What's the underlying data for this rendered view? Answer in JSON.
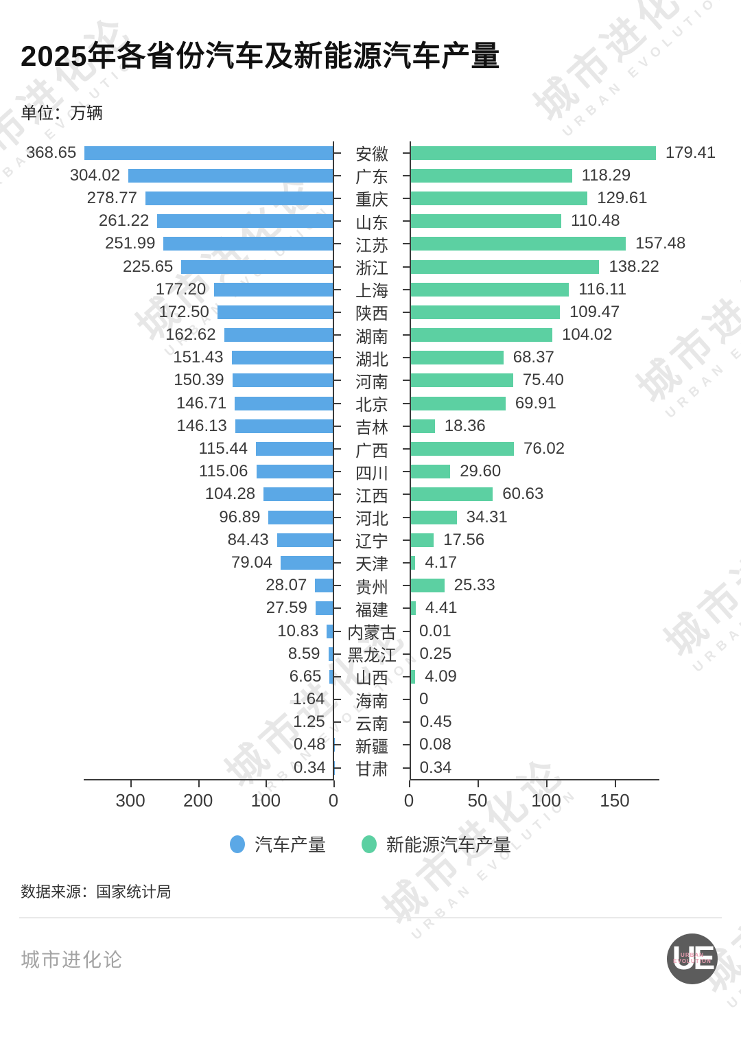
{
  "header": {
    "title": "2025年各省份汽车及新能源汽车产量",
    "unit_label": "单位：万辆"
  },
  "chart_data": {
    "type": "bar",
    "orientation": "horizontal-bidirectional",
    "title": "2025年各省份汽车及新能源汽车产量",
    "unit": "万辆",
    "categories": [
      "安徽",
      "广东",
      "重庆",
      "山东",
      "江苏",
      "浙江",
      "上海",
      "陕西",
      "湖南",
      "湖北",
      "河南",
      "北京",
      "吉林",
      "广西",
      "四川",
      "江西",
      "河北",
      "辽宁",
      "天津",
      "贵州",
      "福建",
      "内蒙古",
      "黑龙江",
      "山西",
      "海南",
      "云南",
      "新疆",
      "甘肃"
    ],
    "series": [
      {
        "name": "汽车产量",
        "side": "left",
        "color": "#5BA8E6",
        "axis_ticks": [
          300,
          200,
          100,
          0
        ],
        "axis_max": 370,
        "values": [
          368.65,
          304.02,
          278.77,
          261.22,
          251.99,
          225.65,
          177.2,
          172.5,
          162.62,
          151.43,
          150.39,
          146.71,
          146.13,
          115.44,
          115.06,
          104.28,
          96.89,
          84.43,
          79.04,
          28.07,
          27.59,
          10.83,
          8.59,
          6.65,
          1.64,
          1.25,
          0.48,
          0.34
        ],
        "labels": [
          "368.65",
          "304.02",
          "278.77",
          "261.22",
          "251.99",
          "225.65",
          "177.20",
          "172.50",
          "162.62",
          "151.43",
          "150.39",
          "146.71",
          "146.13",
          "115.44",
          "115.06",
          "104.28",
          "96.89",
          "84.43",
          "79.04",
          "28.07",
          "27.59",
          "10.83",
          "8.59",
          "6.65",
          "1.64",
          "1.25",
          "0.48",
          "0.34"
        ]
      },
      {
        "name": "新能源汽车产量",
        "side": "right",
        "color": "#5CD0A2",
        "axis_ticks": [
          0,
          50,
          100,
          150
        ],
        "axis_max": 182,
        "values": [
          179.41,
          118.29,
          129.61,
          110.48,
          157.48,
          138.22,
          116.11,
          109.47,
          104.02,
          68.37,
          75.4,
          69.91,
          18.36,
          76.02,
          29.6,
          60.63,
          34.31,
          17.56,
          4.17,
          25.33,
          4.41,
          0.01,
          0.25,
          4.09,
          0,
          0.45,
          0.08,
          0.34
        ],
        "labels": [
          "179.41",
          "118.29",
          "129.61",
          "110.48",
          "157.48",
          "138.22",
          "116.11",
          "109.47",
          "104.02",
          "68.37",
          "75.40",
          "69.91",
          "18.36",
          "76.02",
          "29.60",
          "60.63",
          "34.31",
          "17.56",
          "4.17",
          "25.33",
          "4.41",
          "0.01",
          "0.25",
          "4.09",
          "0",
          "0.45",
          "0.08",
          "0.34"
        ]
      }
    ]
  },
  "legend": {
    "items": [
      {
        "label": "汽车产量",
        "color": "#5BA8E6"
      },
      {
        "label": "新能源汽车产量",
        "color": "#5CD0A2"
      }
    ]
  },
  "source": {
    "text": "数据来源：国家统计局"
  },
  "footer": {
    "brand": "城市进化论",
    "logo_text": "UE",
    "logo_subtext": "URBAN EVOLUTION"
  },
  "watermark": {
    "line1": "城市进化论",
    "line2": "URBAN EVOLUTION"
  }
}
